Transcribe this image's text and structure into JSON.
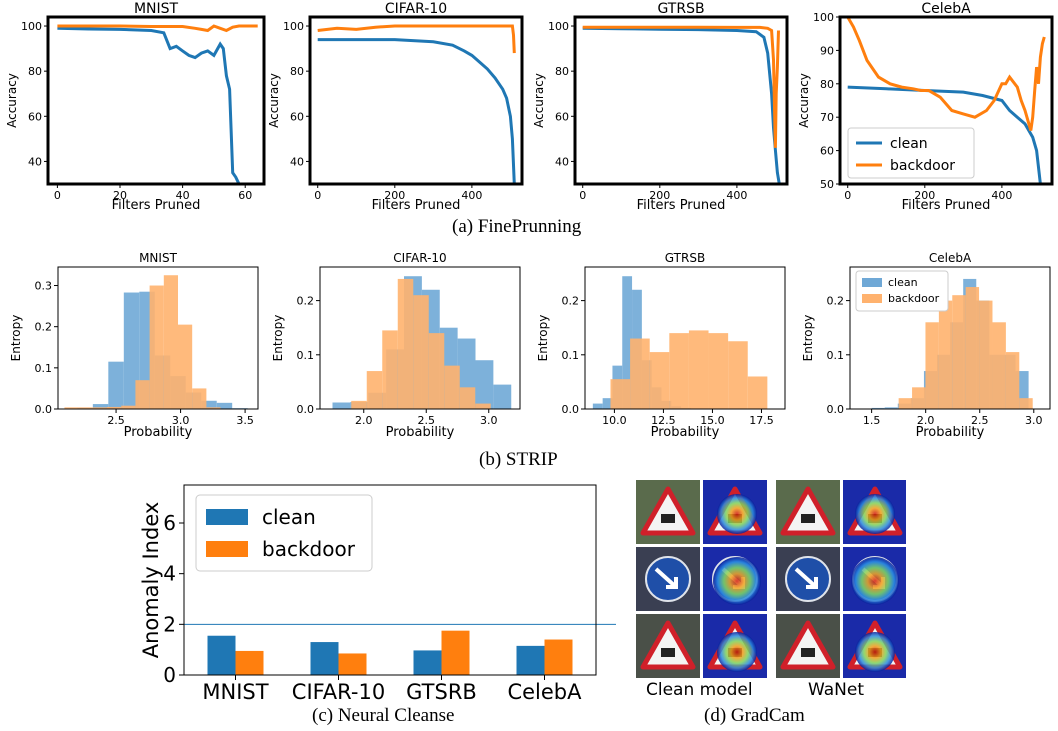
{
  "captions": {
    "a": "(a) FinePrunning",
    "b": "(b) STRIP",
    "c": "(c) Neural Cleanse",
    "d": "(d) GradCam"
  },
  "colors": {
    "clean": "#1f77b4",
    "backdoor": "#ff7f0e",
    "strip_clean": "#6fa8d6",
    "strip_backdoor": "#ffb26e"
  },
  "gradcam": {
    "labels": [
      "Clean model",
      "WaNet"
    ],
    "rows": [
      "triangle-warning-sign",
      "blue-direction-sign",
      "triangle-children-sign"
    ]
  },
  "chart_data": [
    {
      "id": "fp-mnist",
      "type": "line",
      "title": "MNIST",
      "xlabel": "Filters Pruned",
      "ylabel": "Accuracy",
      "xlim": [
        -3,
        66
      ],
      "ylim": [
        30,
        104
      ],
      "xticks": [
        0,
        20,
        40,
        60
      ],
      "yticks": [
        40,
        60,
        80,
        100
      ],
      "legend": null,
      "series": [
        {
          "name": "clean",
          "x": [
            0,
            10,
            20,
            30,
            34,
            36,
            38,
            40,
            42,
            44,
            46,
            48,
            50,
            52,
            53,
            54,
            55,
            56,
            57,
            58
          ],
          "y": [
            99,
            98.7,
            98.5,
            98,
            97,
            90,
            91,
            89,
            87,
            86,
            88,
            89,
            87,
            92,
            90,
            78,
            72,
            35,
            33,
            30
          ]
        },
        {
          "name": "backdoor",
          "x": [
            0,
            10,
            20,
            30,
            40,
            44,
            46,
            48,
            50,
            52,
            54,
            56,
            58,
            60,
            64
          ],
          "y": [
            100,
            100,
            100,
            99.8,
            99.8,
            99,
            98.5,
            98,
            100,
            99,
            98,
            99.5,
            100,
            100,
            100
          ]
        }
      ]
    },
    {
      "id": "fp-cifar10",
      "type": "line",
      "title": "CIFAR-10",
      "xlabel": "Filters Pruned",
      "ylabel": "Accuracy",
      "xlim": [
        -20,
        530
      ],
      "ylim": [
        30,
        104
      ],
      "xticks": [
        0,
        200,
        400
      ],
      "yticks": [
        40,
        60,
        80,
        100
      ],
      "legend": null,
      "series": [
        {
          "name": "clean",
          "x": [
            0,
            100,
            200,
            300,
            350,
            380,
            400,
            420,
            440,
            460,
            480,
            490,
            500,
            505,
            510
          ],
          "y": [
            94,
            94,
            94,
            93,
            91.5,
            89,
            87,
            84,
            81,
            77,
            72,
            68,
            60,
            50,
            30
          ]
        },
        {
          "name": "backdoor",
          "x": [
            0,
            50,
            100,
            150,
            200,
            300,
            400,
            500,
            505,
            508,
            510
          ],
          "y": [
            98,
            99,
            98.5,
            99.5,
            100,
            100,
            100,
            100,
            100,
            96,
            88
          ]
        }
      ]
    },
    {
      "id": "fp-gtrsb",
      "type": "line",
      "title": "GTRSB",
      "xlabel": "Filters Pruned",
      "ylabel": "Accuracy",
      "xlim": [
        -20,
        530
      ],
      "ylim": [
        30,
        104
      ],
      "xticks": [
        0,
        200,
        400
      ],
      "yticks": [
        40,
        60,
        80,
        100
      ],
      "legend": null,
      "series": [
        {
          "name": "clean",
          "x": [
            0,
            100,
            200,
            300,
            400,
            450,
            470,
            480,
            490,
            495,
            500,
            505,
            510
          ],
          "y": [
            99,
            98.8,
            98.6,
            98.4,
            98,
            97.5,
            95,
            88,
            70,
            55,
            45,
            35,
            30
          ]
        },
        {
          "name": "backdoor",
          "x": [
            0,
            100,
            200,
            300,
            400,
            460,
            480,
            490,
            495,
            498,
            500,
            502,
            505,
            508
          ],
          "y": [
            99.5,
            99.5,
            99.5,
            99.5,
            99.4,
            99.4,
            99,
            98,
            85,
            60,
            46,
            70,
            82,
            98
          ]
        }
      ]
    },
    {
      "id": "fp-celeba",
      "type": "line",
      "title": "CelebA",
      "xlabel": "Filters Pruned",
      "ylabel": "Accuracy",
      "xlim": [
        -20,
        530
      ],
      "ylim": [
        50,
        100
      ],
      "xticks": [
        0,
        200,
        400
      ],
      "yticks": [
        50,
        60,
        70,
        80,
        90,
        100
      ],
      "legend": "lower-left",
      "series": [
        {
          "name": "clean",
          "x": [
            0,
            100,
            200,
            300,
            350,
            400,
            420,
            440,
            460,
            480,
            490,
            495,
            500
          ],
          "y": [
            79,
            78.5,
            78,
            77.5,
            76.5,
            75,
            72,
            70,
            68,
            64,
            60,
            55,
            50
          ]
        },
        {
          "name": "backdoor",
          "x": [
            0,
            15,
            30,
            50,
            80,
            110,
            140,
            170,
            190,
            210,
            240,
            270,
            300,
            330,
            360,
            380,
            400,
            410,
            420,
            440,
            450,
            460,
            470,
            475,
            480,
            485,
            490,
            495,
            500,
            505,
            510
          ],
          "y": [
            100,
            97,
            93,
            87,
            82,
            80,
            79,
            78.5,
            78,
            78,
            76,
            72,
            71,
            70,
            72,
            75,
            80,
            80,
            82,
            79,
            75,
            72,
            68,
            66,
            70,
            78,
            85,
            80,
            88,
            92,
            94
          ]
        }
      ]
    },
    {
      "id": "strip-mnist",
      "type": "histogram",
      "title": "MNIST",
      "xlabel": "Probability",
      "ylabel": "Entropy",
      "xlim": [
        2.05,
        3.6
      ],
      "ylim": [
        0,
        0.345
      ],
      "xticks": [
        2.5,
        3.0,
        3.5
      ],
      "yticks": [
        0.0,
        0.1,
        0.2,
        0.3
      ],
      "legend": null,
      "series": [
        {
          "name": "clean",
          "edges": [
            2.2,
            2.32,
            2.44,
            2.56,
            2.68,
            2.8,
            2.92,
            3.04,
            3.16,
            3.28,
            3.4,
            3.52
          ],
          "values": [
            0.003,
            0.012,
            0.115,
            0.283,
            0.285,
            0.13,
            0.08,
            0.04,
            0.02,
            0.015,
            0.002
          ]
        },
        {
          "name": "backdoor",
          "edges": [
            2.1,
            2.21,
            2.32,
            2.43,
            2.54,
            2.65,
            2.76,
            2.87,
            2.98,
            3.09,
            3.2,
            3.31
          ],
          "values": [
            0.004,
            0.004,
            0.004,
            0.005,
            0.008,
            0.07,
            0.3,
            0.325,
            0.205,
            0.05,
            0.004
          ]
        }
      ]
    },
    {
      "id": "strip-cifar10",
      "type": "histogram",
      "title": "CIFAR-10",
      "xlabel": "Probability",
      "ylabel": "Entropy",
      "xlim": [
        1.65,
        3.25
      ],
      "ylim": [
        0,
        0.262
      ],
      "xticks": [
        2.0,
        2.5,
        3.0
      ],
      "yticks": [
        0.0,
        0.1,
        0.2
      ],
      "legend": null,
      "series": [
        {
          "name": "clean",
          "edges": [
            1.75,
            1.893,
            2.036,
            2.179,
            2.322,
            2.465,
            2.608,
            2.751,
            2.894,
            3.037,
            3.18
          ],
          "values": [
            0.012,
            0.013,
            0.03,
            0.11,
            0.245,
            0.22,
            0.15,
            0.13,
            0.09,
            0.045
          ]
        },
        {
          "name": "backdoor",
          "edges": [
            1.9,
            2.024,
            2.148,
            2.272,
            2.396,
            2.52,
            2.644,
            2.768,
            2.892,
            3.016
          ],
          "values": [
            0.015,
            0.07,
            0.145,
            0.24,
            0.21,
            0.14,
            0.08,
            0.04,
            0.01
          ]
        }
      ]
    },
    {
      "id": "strip-gtrsb",
      "type": "histogram",
      "title": "GTRSB",
      "xlabel": "Probability",
      "ylabel": "Entropy",
      "xlim": [
        8.5,
        18.7
      ],
      "ylim": [
        0,
        0.262
      ],
      "xticks": [
        10.0,
        12.5,
        15.0,
        17.5
      ],
      "yticks": [
        0.0,
        0.1,
        0.2
      ],
      "legend": null,
      "series": [
        {
          "name": "clean",
          "edges": [
            8.9,
            9.4,
            9.9,
            10.4,
            10.9,
            11.4,
            11.9,
            12.4,
            12.9,
            13.4,
            13.9
          ],
          "values": [
            0.01,
            0.02,
            0.08,
            0.245,
            0.22,
            0.09,
            0.04,
            0.015,
            0.005,
            0.002
          ]
        },
        {
          "name": "backdoor",
          "edges": [
            9.8,
            10.8,
            11.8,
            12.8,
            13.8,
            14.8,
            15.8,
            16.8,
            17.8
          ],
          "values": [
            0.055,
            0.13,
            0.105,
            0.14,
            0.145,
            0.14,
            0.125,
            0.06
          ]
        }
      ]
    },
    {
      "id": "strip-celeba",
      "type": "histogram",
      "title": "CelebA",
      "xlabel": "Probability",
      "ylabel": "Entropy",
      "xlim": [
        1.3,
        3.15
      ],
      "ylim": [
        0,
        0.262
      ],
      "xticks": [
        1.5,
        2.0,
        2.5,
        3.0
      ],
      "yticks": [
        0.0,
        0.1,
        0.2
      ],
      "legend": "upper-left",
      "series": [
        {
          "name": "clean",
          "edges": [
            1.5,
            1.621,
            1.742,
            1.863,
            1.984,
            2.105,
            2.226,
            2.347,
            2.468,
            2.589,
            2.71,
            2.831,
            2.952
          ],
          "values": [
            0.002,
            0.003,
            0.01,
            0.02,
            0.07,
            0.1,
            0.16,
            0.24,
            0.2,
            0.1,
            0.1,
            0.07
          ]
        },
        {
          "name": "backdoor",
          "edges": [
            1.75,
            1.874,
            1.998,
            2.122,
            2.246,
            2.37,
            2.494,
            2.618,
            2.742,
            2.866,
            2.99
          ],
          "values": [
            0.02,
            0.04,
            0.16,
            0.2,
            0.21,
            0.225,
            0.2,
            0.16,
            0.105,
            0.02
          ]
        }
      ]
    },
    {
      "id": "nc",
      "type": "bar",
      "title": "",
      "xlabel": "",
      "ylabel": "Anomaly Index",
      "categories": [
        "MNIST",
        "CIFAR-10",
        "GTSRB",
        "CelebA"
      ],
      "ylim": [
        0,
        7.5
      ],
      "yticks": [
        0,
        2,
        4,
        6
      ],
      "threshold": 2,
      "legend": "upper-left",
      "series": [
        {
          "name": "clean",
          "values": [
            1.55,
            1.3,
            0.97,
            1.15
          ]
        },
        {
          "name": "backdoor",
          "values": [
            0.95,
            0.85,
            1.75,
            1.4
          ]
        }
      ]
    }
  ]
}
